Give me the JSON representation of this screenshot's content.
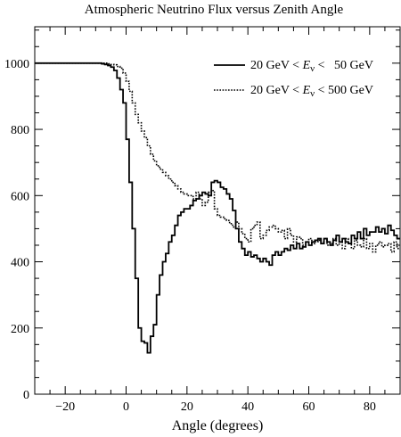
{
  "chart_data": {
    "type": "line",
    "title": "Atmospheric Neutrino Flux versus Zenith Angle",
    "xlabel": "Angle  (degrees)",
    "ylabel": "",
    "xlim": [
      -30,
      90
    ],
    "ylim": [
      0,
      1110
    ],
    "x_ticks": [
      -20,
      0,
      20,
      40,
      60,
      80
    ],
    "x_tick_labels": [
      "−20",
      "0",
      "20",
      "40",
      "60",
      "80"
    ],
    "y_ticks": [
      0,
      200,
      400,
      600,
      800,
      1000
    ],
    "y_tick_labels": [
      "0",
      "200",
      "400",
      "600",
      "800",
      "1000"
    ],
    "grid": false,
    "legend_position": "top-right",
    "legend": [
      {
        "prefix": "20 GeV < ",
        "var": "E",
        "sub": "ν",
        "suffix": " <   50 GeV",
        "style": "solid"
      },
      {
        "prefix": "20 GeV < ",
        "var": "E",
        "sub": "ν",
        "suffix": " < 500 GeV",
        "style": "dotted"
      }
    ],
    "bin_width": 1,
    "series": [
      {
        "style": "solid",
        "x_start": -30,
        "values": [
          1000,
          1000,
          1000,
          1000,
          1000,
          1000,
          1000,
          1000,
          1000,
          1000,
          1000,
          1000,
          1000,
          1000,
          1000,
          1000,
          1000,
          1000,
          1000,
          1000,
          1000,
          1000,
          998,
          996,
          993,
          988,
          978,
          955,
          920,
          880,
          770,
          640,
          500,
          350,
          200,
          160,
          155,
          125,
          175,
          210,
          300,
          360,
          400,
          425,
          460,
          480,
          510,
          540,
          550,
          560,
          560,
          570,
          585,
          590,
          600,
          610,
          605,
          600,
          640,
          645,
          640,
          625,
          620,
          605,
          590,
          555,
          500,
          460,
          440,
          420,
          430,
          415,
          420,
          410,
          400,
          410,
          400,
          390,
          420,
          430,
          420,
          430,
          440,
          435,
          450,
          440,
          455,
          440,
          445,
          460,
          450,
          460,
          465,
          470,
          455,
          470,
          460,
          450,
          465,
          480,
          460,
          470,
          460,
          455,
          480,
          470,
          490,
          470,
          500,
          480,
          490,
          490,
          505,
          490,
          500,
          485,
          510,
          495,
          480,
          470
        ]
      },
      {
        "style": "dotted",
        "x_start": -30,
        "values": [
          1000,
          1000,
          1000,
          1000,
          1000,
          1000,
          1000,
          1000,
          1000,
          1000,
          1000,
          1000,
          1000,
          1000,
          1000,
          1000,
          1000,
          1000,
          1000,
          1000,
          1000,
          1000,
          1000,
          1000,
          998,
          996,
          995,
          990,
          985,
          970,
          945,
          915,
          880,
          845,
          820,
          795,
          775,
          750,
          725,
          705,
          690,
          680,
          670,
          660,
          650,
          640,
          630,
          620,
          610,
          605,
          600,
          600,
          590,
          610,
          590,
          570,
          580,
          610,
          615,
          560,
          540,
          535,
          530,
          525,
          515,
          505,
          520,
          500,
          485,
          470,
          460,
          500,
          510,
          520,
          470,
          480,
          495,
          505,
          510,
          500,
          490,
          495,
          470,
          500,
          480,
          460,
          475,
          470,
          450,
          460,
          470,
          455,
          460,
          465,
          460,
          470,
          450,
          455,
          470,
          450,
          460,
          440,
          470,
          455,
          440,
          465,
          450,
          445,
          470,
          440,
          455,
          430,
          450,
          460,
          445,
          450,
          455,
          430,
          460,
          440
        ]
      }
    ]
  }
}
